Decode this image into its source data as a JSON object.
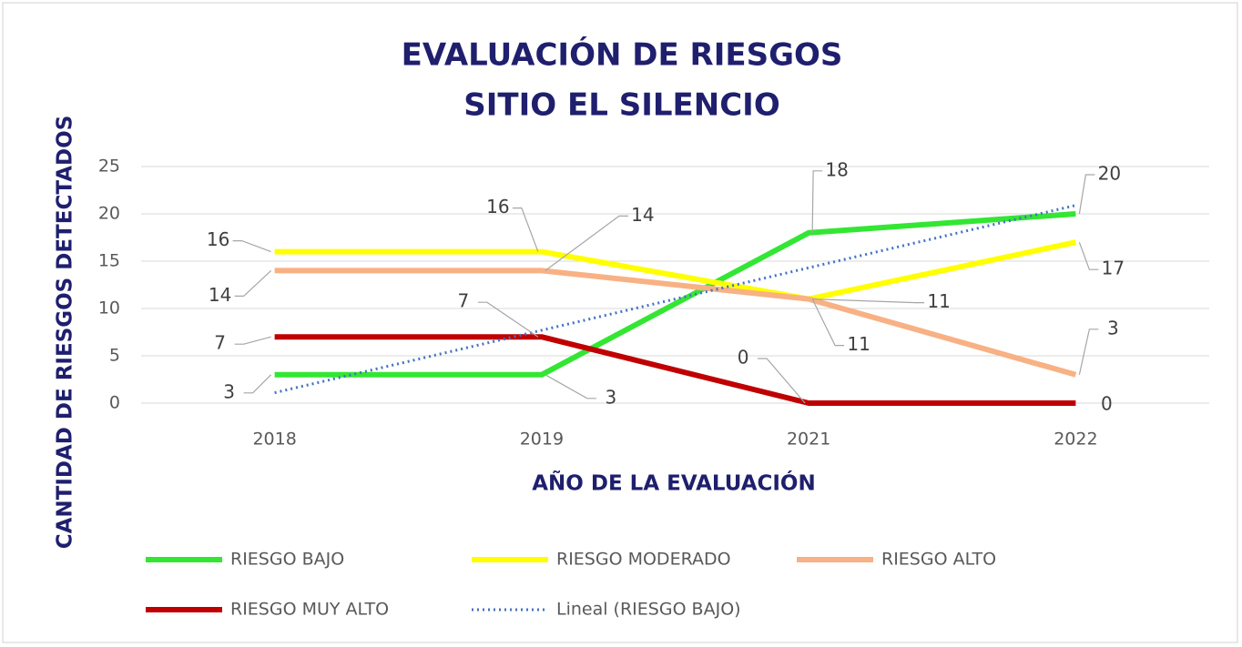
{
  "chart_data": {
    "type": "line",
    "title": "EVALUACIÓN DE RIESGOS",
    "subtitle": "SITIO EL SILENCIO",
    "x_label": "AÑO DE LA EVALUACIÓN",
    "y_label": "CANTIDAD DE RIESGOS  DETECTADOS",
    "categories": [
      "2018",
      "2019",
      "2021",
      "2022"
    ],
    "series": [
      {
        "name": "RIESGO BAJO",
        "color": "#33e633",
        "values": [
          3,
          3,
          18,
          20
        ]
      },
      {
        "name": "RIESGO MODERADO",
        "color": "#ffff00",
        "values": [
          16,
          16,
          11,
          17
        ]
      },
      {
        "name": "RIESGO ALTO",
        "color": "#f8b184",
        "values": [
          14,
          14,
          11,
          3
        ]
      },
      {
        "name": "RIESGO MUY ALTO",
        "color": "#c00000",
        "values": [
          7,
          7,
          0,
          0
        ]
      },
      {
        "name": "Lineal (RIESGO BAJO)",
        "color": "#4472c4",
        "style": "dotted",
        "values": [
          1.1,
          7.7,
          14.3,
          20.9
        ]
      }
    ],
    "data_labels": [
      true,
      true,
      true,
      true,
      false
    ],
    "ylim": [
      0,
      25
    ],
    "yticks": [
      0,
      5,
      10,
      15,
      20,
      25
    ],
    "grid": true,
    "legend": "bottom"
  }
}
